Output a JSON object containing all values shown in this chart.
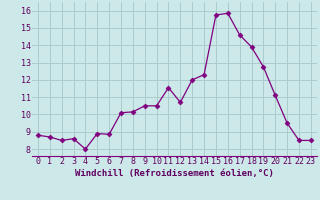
{
  "x": [
    0,
    1,
    2,
    3,
    4,
    5,
    6,
    7,
    8,
    9,
    10,
    11,
    12,
    13,
    14,
    15,
    16,
    17,
    18,
    19,
    20,
    21,
    22,
    23
  ],
  "y": [
    8.8,
    8.7,
    8.5,
    8.6,
    8.0,
    8.9,
    8.85,
    10.1,
    10.15,
    10.5,
    10.5,
    11.55,
    10.7,
    12.0,
    12.3,
    15.75,
    15.85,
    14.6,
    13.9,
    12.75,
    11.1,
    9.5,
    8.5,
    8.5
  ],
  "line_color": "#800080",
  "marker": "D",
  "marker_size": 2.5,
  "bg_color": "#cce8e8",
  "grid_color": "#aacccc",
  "xlabel": "Windchill (Refroidissement éolien,°C)",
  "xlabel_fontsize": 6.5,
  "ylabel_ticks": [
    8,
    9,
    10,
    11,
    12,
    13,
    14,
    15,
    16
  ],
  "xlim": [
    -0.5,
    23.5
  ],
  "ylim": [
    7.6,
    16.5
  ],
  "tick_fontsize": 6,
  "tick_color": "#600060",
  "label_color": "#600060"
}
